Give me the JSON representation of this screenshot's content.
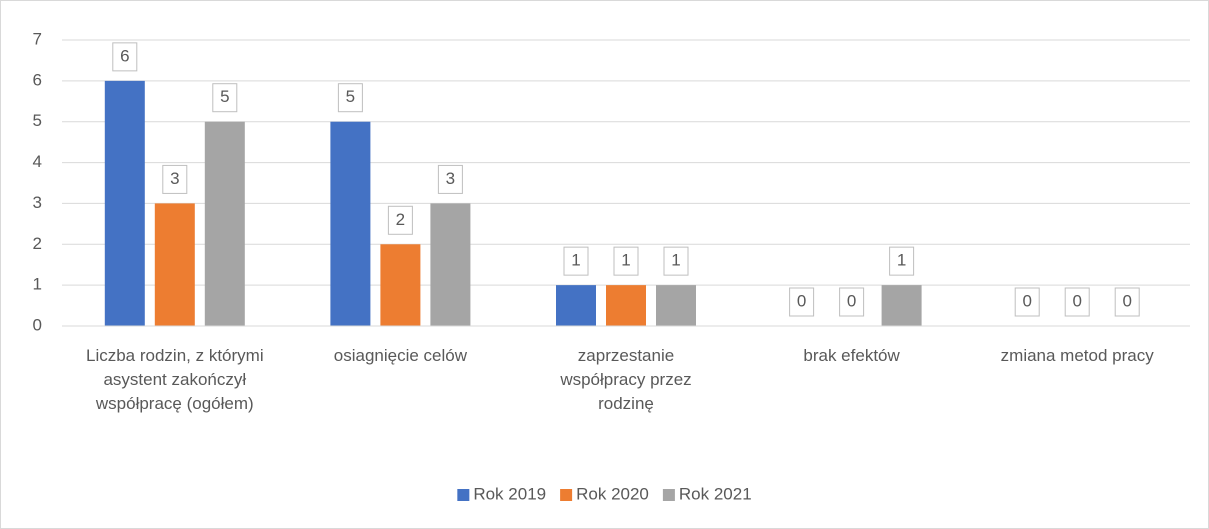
{
  "chart_data": {
    "type": "bar",
    "categories": [
      "Liczba rodzin, z którymi asystent zakończył współpracę (ogółem)",
      "osiagnięcie celów",
      "zaprzestanie współpracy przez rodzinę",
      "brak efektów",
      "zmiana metod pracy"
    ],
    "series": [
      {
        "name": "Rok 2019",
        "color": "#4472c4",
        "values": [
          6,
          5,
          1,
          0,
          0
        ]
      },
      {
        "name": "Rok 2020",
        "color": "#ed7d31",
        "values": [
          3,
          2,
          1,
          0,
          0
        ]
      },
      {
        "name": "Rok 2021",
        "color": "#a5a5a5",
        "values": [
          5,
          3,
          1,
          1,
          0
        ]
      }
    ],
    "ylim": [
      0,
      7
    ],
    "yticks": [
      0,
      1,
      2,
      3,
      4,
      5,
      6,
      7
    ],
    "grid": true,
    "legend": "bottom"
  }
}
